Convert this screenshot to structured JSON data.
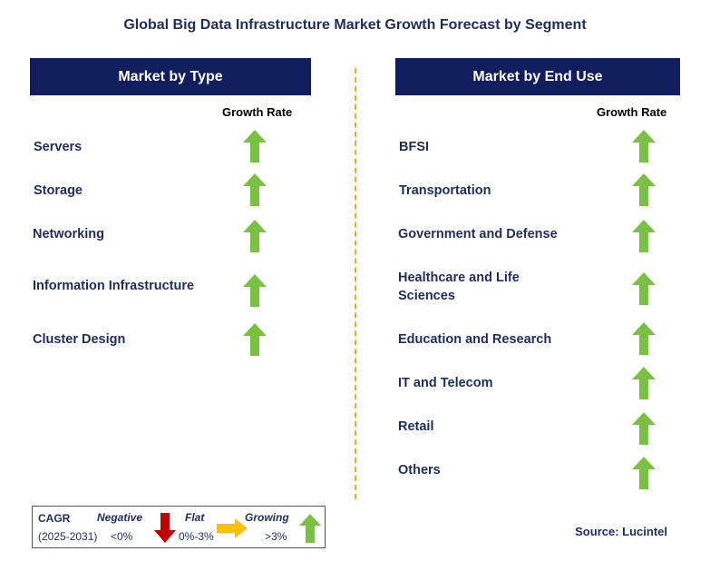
{
  "title": "Global Big Data Infrastructure Market Growth Forecast by Segment",
  "left_panel": {
    "header": "Market by Type",
    "growth_label": "Growth Rate",
    "items": [
      {
        "label": "Servers",
        "trend": "growing"
      },
      {
        "label": "Storage",
        "trend": "growing"
      },
      {
        "label": "Networking",
        "trend": "growing"
      },
      {
        "label": "Information Infrastructure",
        "trend": "growing"
      },
      {
        "label": "Cluster Design",
        "trend": "growing"
      }
    ]
  },
  "right_panel": {
    "header": "Market by End Use",
    "growth_label": "Growth Rate",
    "items": [
      {
        "label": "BFSI",
        "trend": "growing"
      },
      {
        "label": "Transportation",
        "trend": "growing"
      },
      {
        "label": "Government and Defense",
        "trend": "growing"
      },
      {
        "label": "Healthcare and Life Sciences",
        "trend": "growing"
      },
      {
        "label": "Education and Research",
        "trend": "growing"
      },
      {
        "label": "IT and Telecom",
        "trend": "growing"
      },
      {
        "label": "Retail",
        "trend": "growing"
      },
      {
        "label": "Others",
        "trend": "growing"
      }
    ]
  },
  "legend": {
    "cagr_label": "CAGR",
    "period": "(2025-2031)",
    "negative": {
      "name": "Negative",
      "value": "<0%",
      "color": "#c00000",
      "icon": "down-arrow-icon"
    },
    "flat": {
      "name": "Flat",
      "value": "0%-3%",
      "color": "#ffc000",
      "icon": "right-arrow-icon"
    },
    "growing": {
      "name": "Growing",
      "value": ">3%",
      "color": "#7ac143",
      "icon": "up-arrow-icon"
    }
  },
  "source": "Source: Lucintel",
  "colors": {
    "header_bg": "#111e5e",
    "text": "#1f2d5c",
    "divider": "#f2a72e",
    "arrow_up": "#7ac143"
  }
}
